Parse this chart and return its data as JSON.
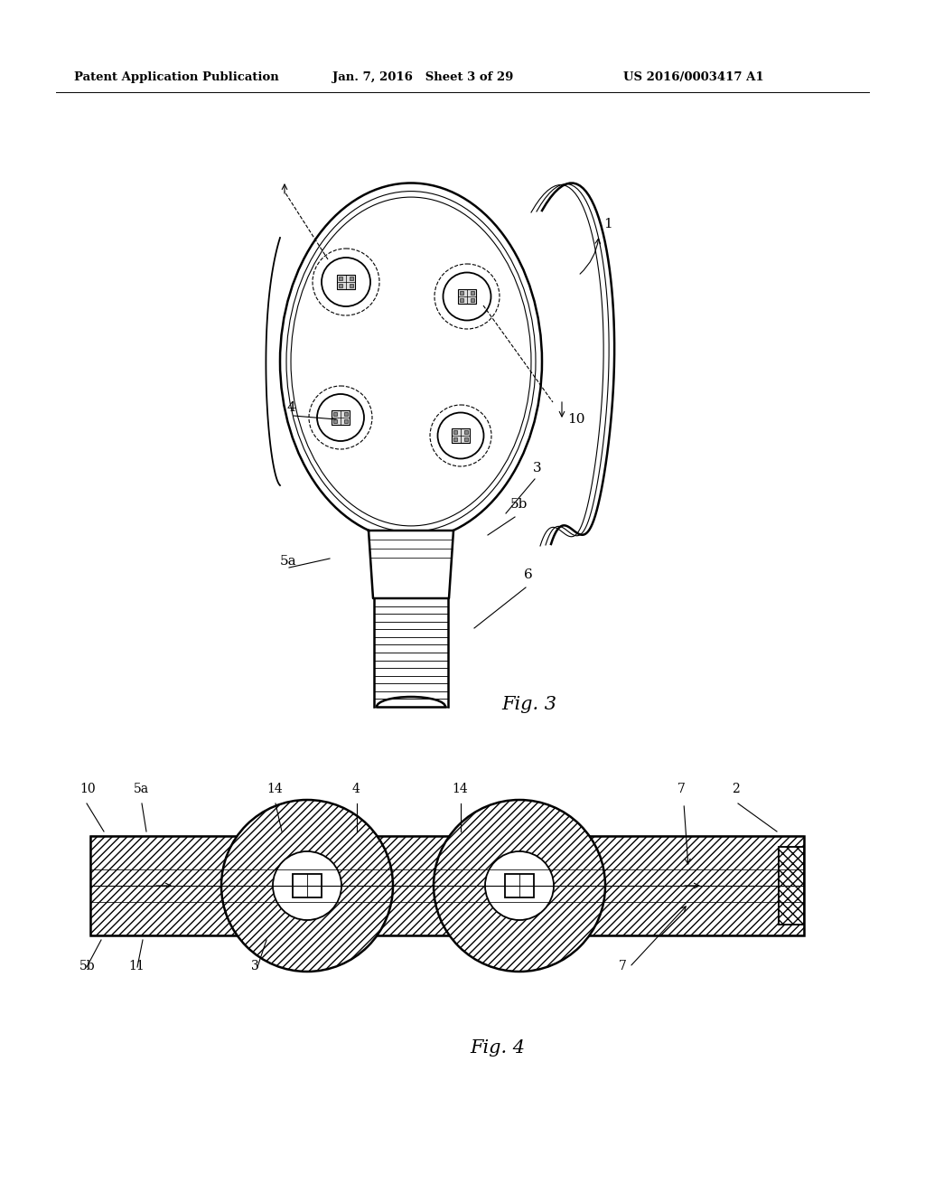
{
  "header_left": "Patent Application Publication",
  "header_mid": "Jan. 7, 2016   Sheet 3 of 29",
  "header_right": "US 2016/0003417 A1",
  "fig3_label": "Fig. 3",
  "fig4_label": "Fig. 4",
  "bg_color": "#ffffff",
  "line_color": "#000000"
}
